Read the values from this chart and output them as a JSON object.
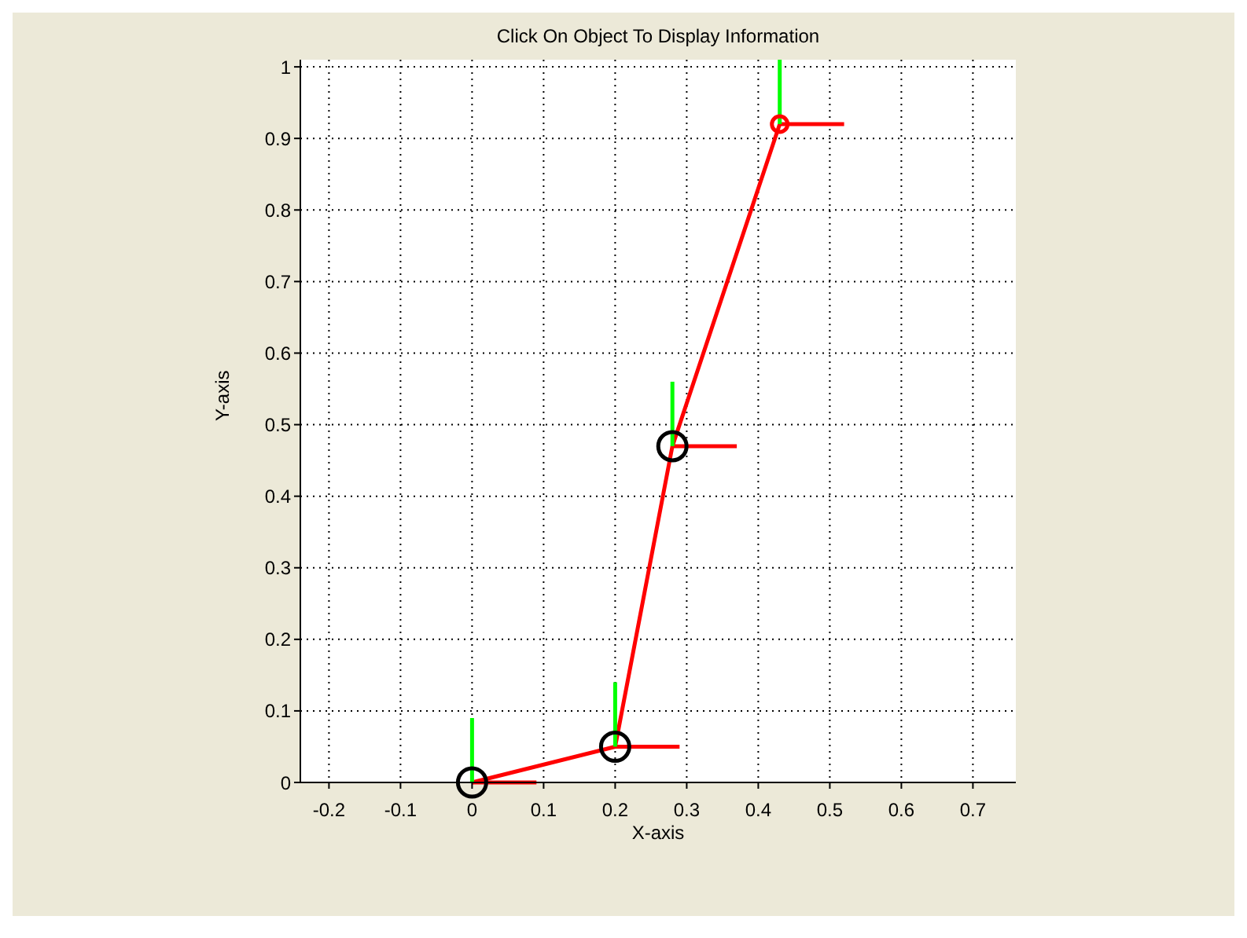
{
  "chart_data": {
    "type": "line",
    "title": "Click On Object To Display Information",
    "xlabel": "X-axis",
    "ylabel": "Y-axis",
    "xlim": [
      -0.24,
      0.76
    ],
    "ylim": [
      0,
      1.01
    ],
    "xticks": [
      -0.2,
      -0.1,
      0,
      0.1,
      0.2,
      0.3,
      0.4,
      0.5,
      0.6,
      0.7
    ],
    "yticks": [
      0,
      0.1,
      0.2,
      0.3,
      0.4,
      0.5,
      0.6,
      0.7,
      0.8,
      0.9,
      1
    ],
    "grid": true,
    "marker": "none",
    "line_style": "solid",
    "series": [
      {
        "color": "#ff0000",
        "x": [
          0,
          0.2,
          0.28,
          0.43
        ],
        "values": [
          0,
          0.05,
          0.47,
          0.92
        ]
      },
      {
        "color": "#ff0000",
        "x": [
          0,
          0.09
        ],
        "values": [
          0,
          0
        ]
      },
      {
        "color": "#ff0000",
        "x": [
          0.2,
          0.29
        ],
        "values": [
          0.05,
          0.05
        ]
      },
      {
        "color": "#ff0000",
        "x": [
          0.28,
          0.37
        ],
        "values": [
          0.47,
          0.47
        ]
      },
      {
        "color": "#ff0000",
        "x": [
          0.43,
          0.52
        ],
        "values": [
          0.92,
          0.92
        ]
      },
      {
        "color": "#00ff00",
        "x": [
          0,
          0
        ],
        "values": [
          0,
          0.09
        ]
      },
      {
        "color": "#00ff00",
        "x": [
          0.2,
          0.2
        ],
        "values": [
          0.05,
          0.14
        ]
      },
      {
        "color": "#00ff00",
        "x": [
          0.28,
          0.28
        ],
        "values": [
          0.47,
          0.56
        ]
      },
      {
        "color": "#00ff00",
        "x": [
          0.43,
          0.43
        ],
        "values": [
          0.92,
          1.01
        ]
      },
      {
        "type": "scatter",
        "color": "#000000",
        "x": [
          0,
          0.2,
          0.28
        ],
        "values": [
          0,
          0.05,
          0.47
        ],
        "marker": "circle"
      },
      {
        "type": "scatter",
        "color": "#ff0000",
        "x": [
          0.43
        ],
        "values": [
          0.92
        ],
        "marker": "circle"
      }
    ]
  }
}
